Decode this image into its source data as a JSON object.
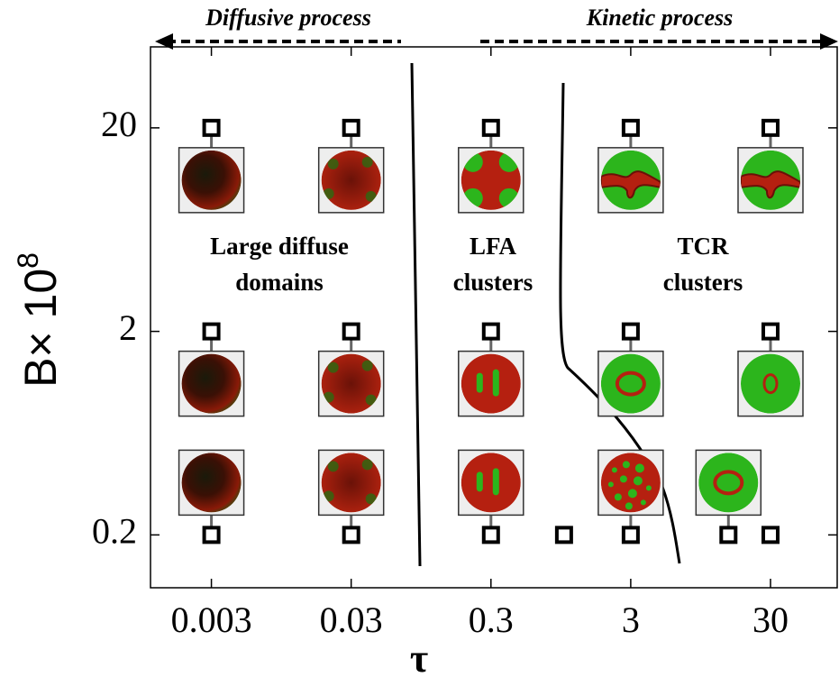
{
  "chart_data": {
    "type": "scatter",
    "x_label": "τ",
    "y_label": "B× 10",
    "y_label_exponent": "8",
    "x": [
      0.003,
      0.03,
      0.3,
      3,
      30,
      0.003,
      0.03,
      0.3,
      3,
      30,
      0.003,
      0.03,
      0.3,
      1,
      3,
      15,
      30
    ],
    "y": [
      20,
      20,
      20,
      20,
      20,
      2,
      2,
      2,
      2,
      2,
      0.2,
      0.2,
      0.2,
      0.2,
      0.2,
      0.2,
      0.2
    ],
    "xlim": [
      0.0011,
      90
    ],
    "ylim": [
      0.11,
      50
    ],
    "xticks": [
      0.003,
      0.03,
      0.3,
      3,
      30
    ],
    "yticks": [
      0.2,
      2,
      20
    ],
    "x_log": true,
    "y_log": true,
    "marker_color": "#000000",
    "annotations": [
      {
        "text": "Diffusive process"
      },
      {
        "text": "Kinetic process"
      }
    ],
    "regions": [
      {
        "lines": [
          "Large diffuse",
          "domains"
        ]
      },
      {
        "lines": [
          "LFA",
          "clusters"
        ]
      },
      {
        "lines": [
          "TCR",
          "clusters"
        ]
      }
    ]
  }
}
